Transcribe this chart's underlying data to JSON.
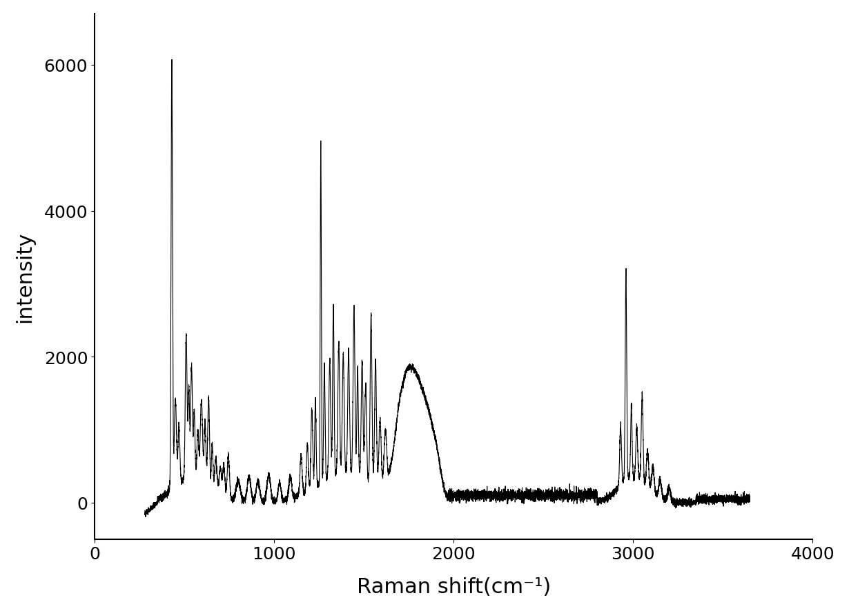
{
  "title": "",
  "xlabel": "Raman shift(cm⁻¹)",
  "ylabel": "intensity",
  "xlim": [
    0,
    4000
  ],
  "ylim": [
    -500,
    6700
  ],
  "xticks": [
    0,
    1000,
    2000,
    3000,
    4000
  ],
  "yticks": [
    0,
    2000,
    4000,
    6000
  ],
  "line_color": "#000000",
  "line_width": 0.8,
  "background_color": "#ffffff",
  "xlabel_fontsize": 22,
  "ylabel_fontsize": 22,
  "tick_fontsize": 18
}
